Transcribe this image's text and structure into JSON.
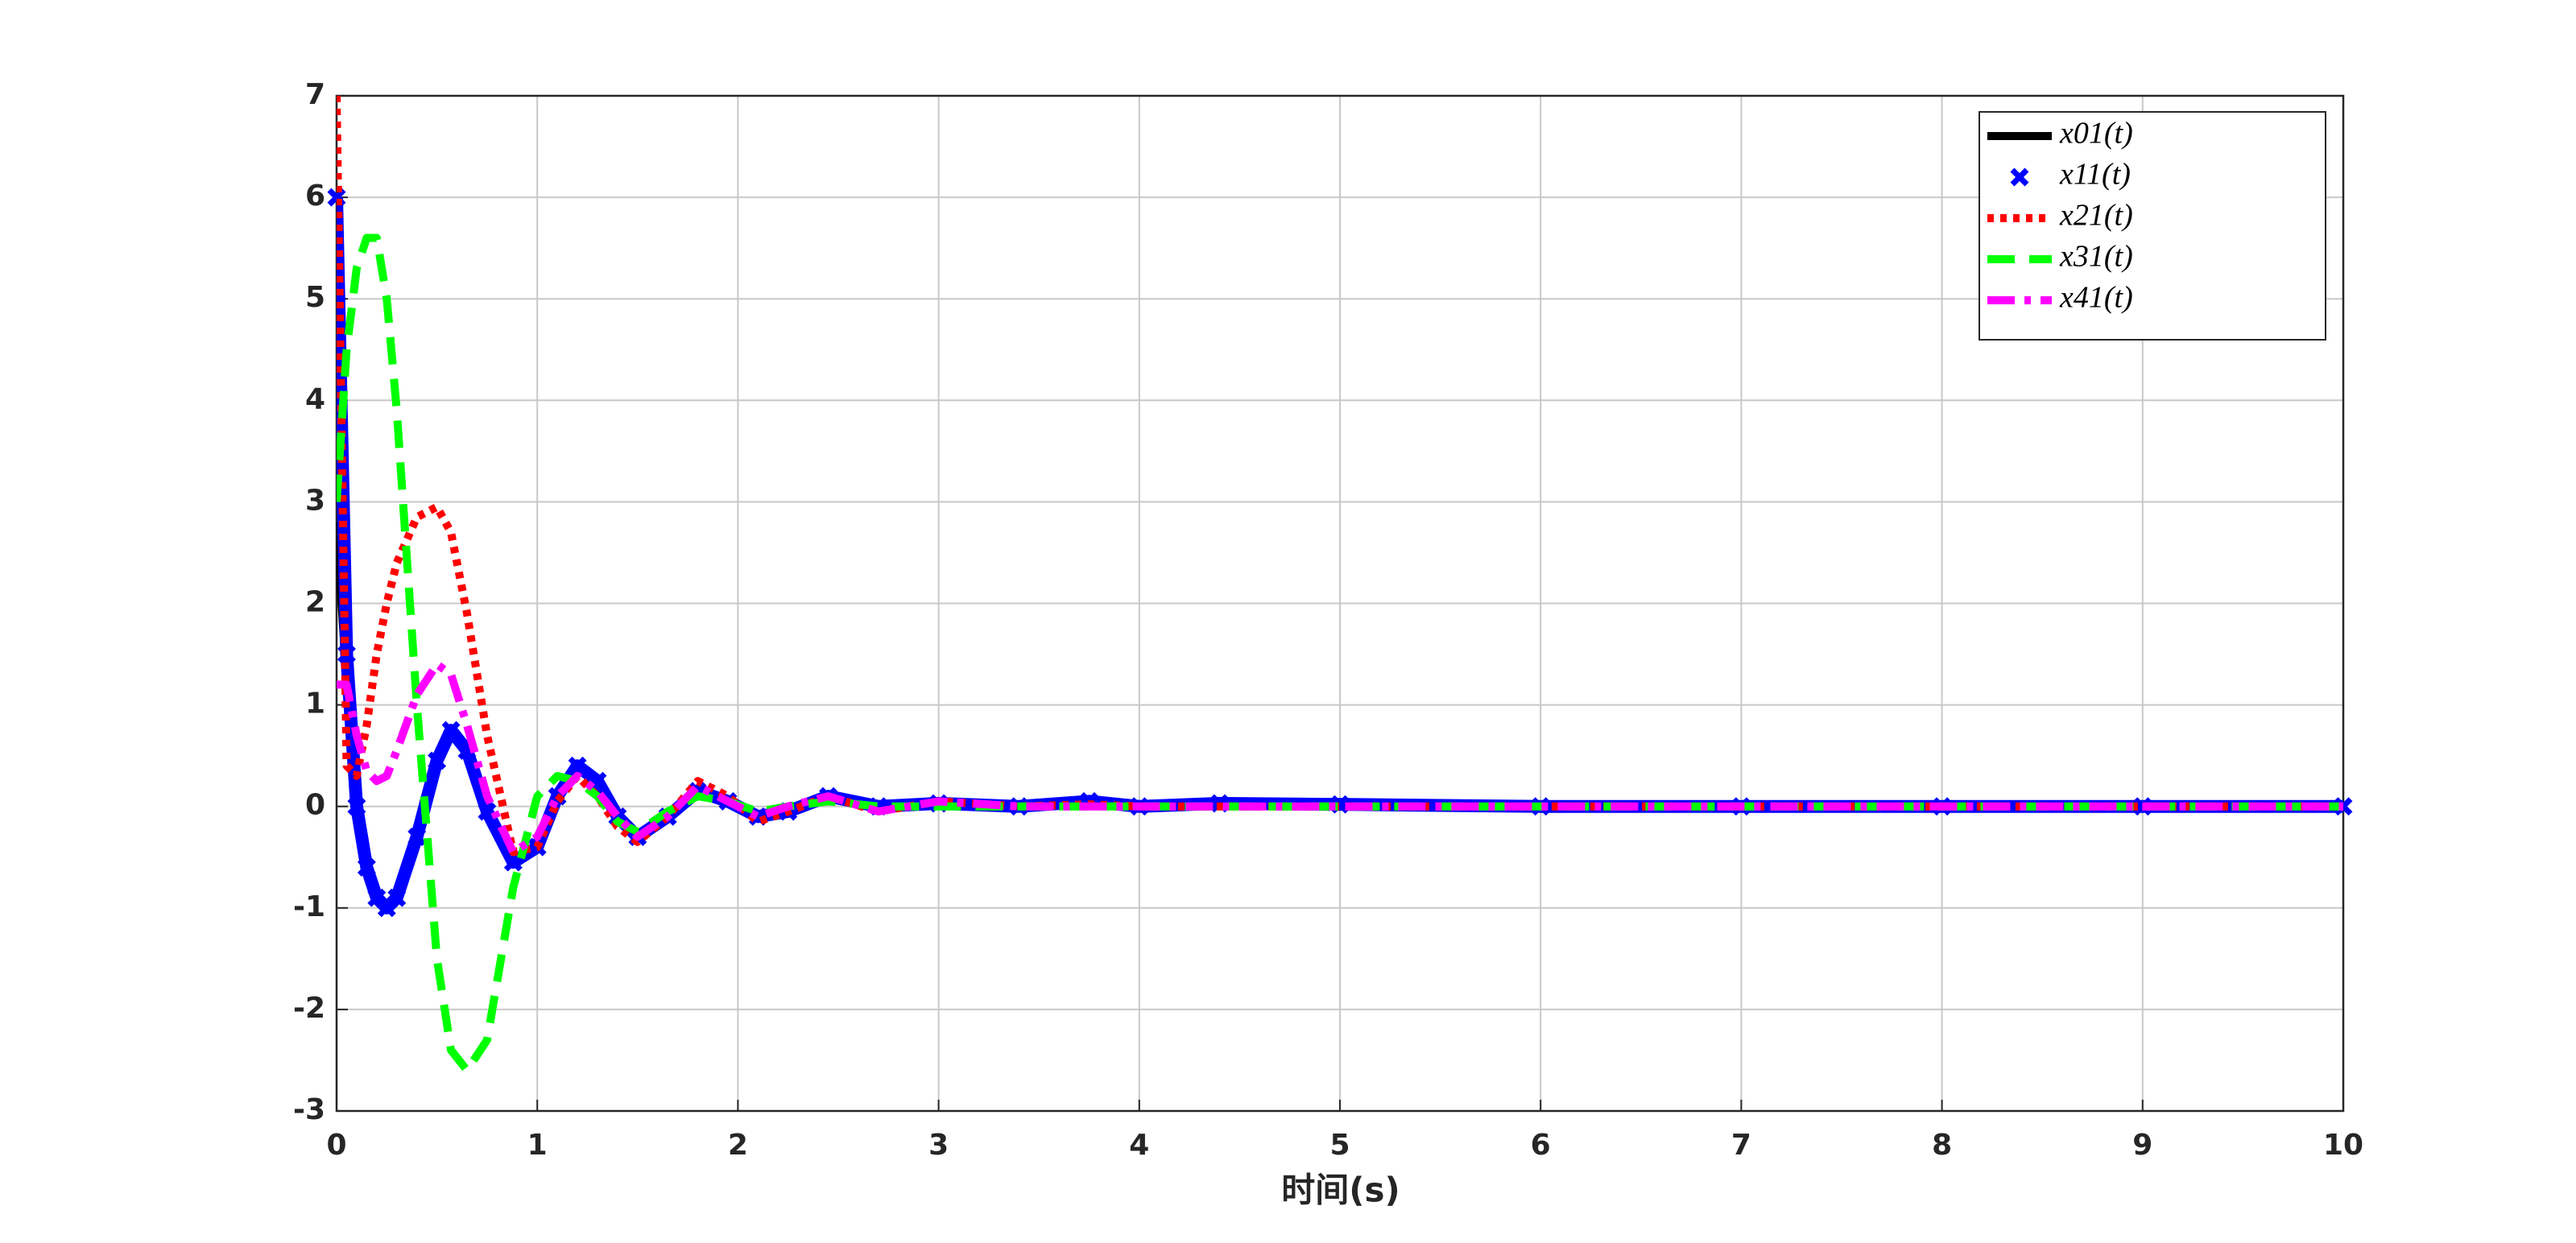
{
  "chart_data": {
    "type": "line",
    "xlabel": "时间(s)",
    "x": [
      0,
      0.05,
      0.1,
      0.15,
      0.2,
      0.25,
      0.3,
      0.4,
      0.5,
      0.57,
      0.65,
      0.75,
      0.88,
      1.0,
      1.1,
      1.2,
      1.3,
      1.4,
      1.5,
      1.65,
      1.8,
      1.95,
      2.1,
      2.25,
      2.45,
      2.7,
      3.0,
      3.4,
      3.75,
      4.0,
      4.4,
      5,
      6,
      7,
      8,
      9,
      10
    ],
    "series": [
      {
        "name": "x01(t)",
        "color": "#000000",
        "linestyle": "solid",
        "marker": "none",
        "values": [
          2.8,
          1.2,
          0.0,
          -0.6,
          -0.9,
          -1.0,
          -0.9,
          -0.3,
          0.45,
          0.75,
          0.55,
          -0.05,
          -0.55,
          -0.4,
          0.1,
          0.4,
          0.25,
          -0.1,
          -0.3,
          -0.1,
          0.15,
          0.05,
          -0.1,
          -0.05,
          0.1,
          0,
          0.03,
          0,
          0.05,
          0,
          0.03,
          0.02,
          0,
          0,
          0,
          0,
          0
        ]
      },
      {
        "name": "x11(t)",
        "color": "#0000ff",
        "linestyle": "none",
        "marker": "x",
        "values": [
          6,
          1.5,
          0.0,
          -0.6,
          -0.9,
          -1.0,
          -0.9,
          -0.3,
          0.45,
          0.75,
          0.55,
          -0.05,
          -0.55,
          -0.4,
          0.1,
          0.4,
          0.25,
          -0.1,
          -0.3,
          -0.1,
          0.15,
          0.05,
          -0.1,
          -0.05,
          0.1,
          0,
          0.03,
          0,
          0.05,
          0,
          0.03,
          0.02,
          0,
          0,
          0,
          0,
          0
        ]
      },
      {
        "name": "x21(t)",
        "color": "#ff0000",
        "linestyle": "dotted",
        "marker": "none",
        "values": [
          7,
          0.4,
          0.3,
          0.8,
          1.5,
          2.0,
          2.4,
          2.85,
          2.95,
          2.7,
          1.9,
          0.7,
          -0.45,
          -0.4,
          0.05,
          0.3,
          0.1,
          -0.2,
          -0.35,
          -0.1,
          0.25,
          0.1,
          -0.15,
          -0.05,
          0.1,
          -0.05,
          0.05,
          0,
          0.02,
          0,
          0,
          0,
          0,
          0,
          0,
          0,
          0
        ]
      },
      {
        "name": "x31(t)",
        "color": "#00ff00",
        "linestyle": "dashed",
        "marker": "none",
        "values": [
          3.0,
          4.5,
          5.3,
          5.6,
          5.6,
          5.0,
          3.9,
          1.0,
          -1.5,
          -2.4,
          -2.6,
          -2.3,
          -0.8,
          0.1,
          0.3,
          0.25,
          0.1,
          -0.15,
          -0.25,
          -0.05,
          0.1,
          0.05,
          -0.05,
          0,
          0.05,
          0,
          0,
          0,
          0,
          0,
          0,
          0,
          0,
          0,
          0,
          0,
          0
        ]
      },
      {
        "name": "x41(t)",
        "color": "#ff00ff",
        "linestyle": "dashdot",
        "marker": "none",
        "values": [
          1.2,
          1.2,
          0.7,
          0.35,
          0.25,
          0.3,
          0.55,
          1.1,
          1.4,
          1.3,
          0.8,
          0.1,
          -0.45,
          -0.3,
          0.1,
          0.3,
          0.15,
          -0.1,
          -0.3,
          -0.1,
          0.2,
          0.05,
          -0.1,
          0,
          0.1,
          -0.05,
          0.05,
          0,
          0,
          0,
          0,
          0,
          0,
          0,
          0,
          0,
          0
        ]
      }
    ],
    "xlim": [
      0,
      10
    ],
    "xticks": [
      0,
      1,
      2,
      3,
      4,
      5,
      6,
      7,
      8,
      9,
      10
    ],
    "ylim": [
      -3,
      7
    ],
    "yticks": [
      -3,
      -2,
      -1,
      0,
      1,
      2,
      3,
      4,
      5,
      6,
      7
    ],
    "grid": true,
    "legend": "top-right"
  }
}
